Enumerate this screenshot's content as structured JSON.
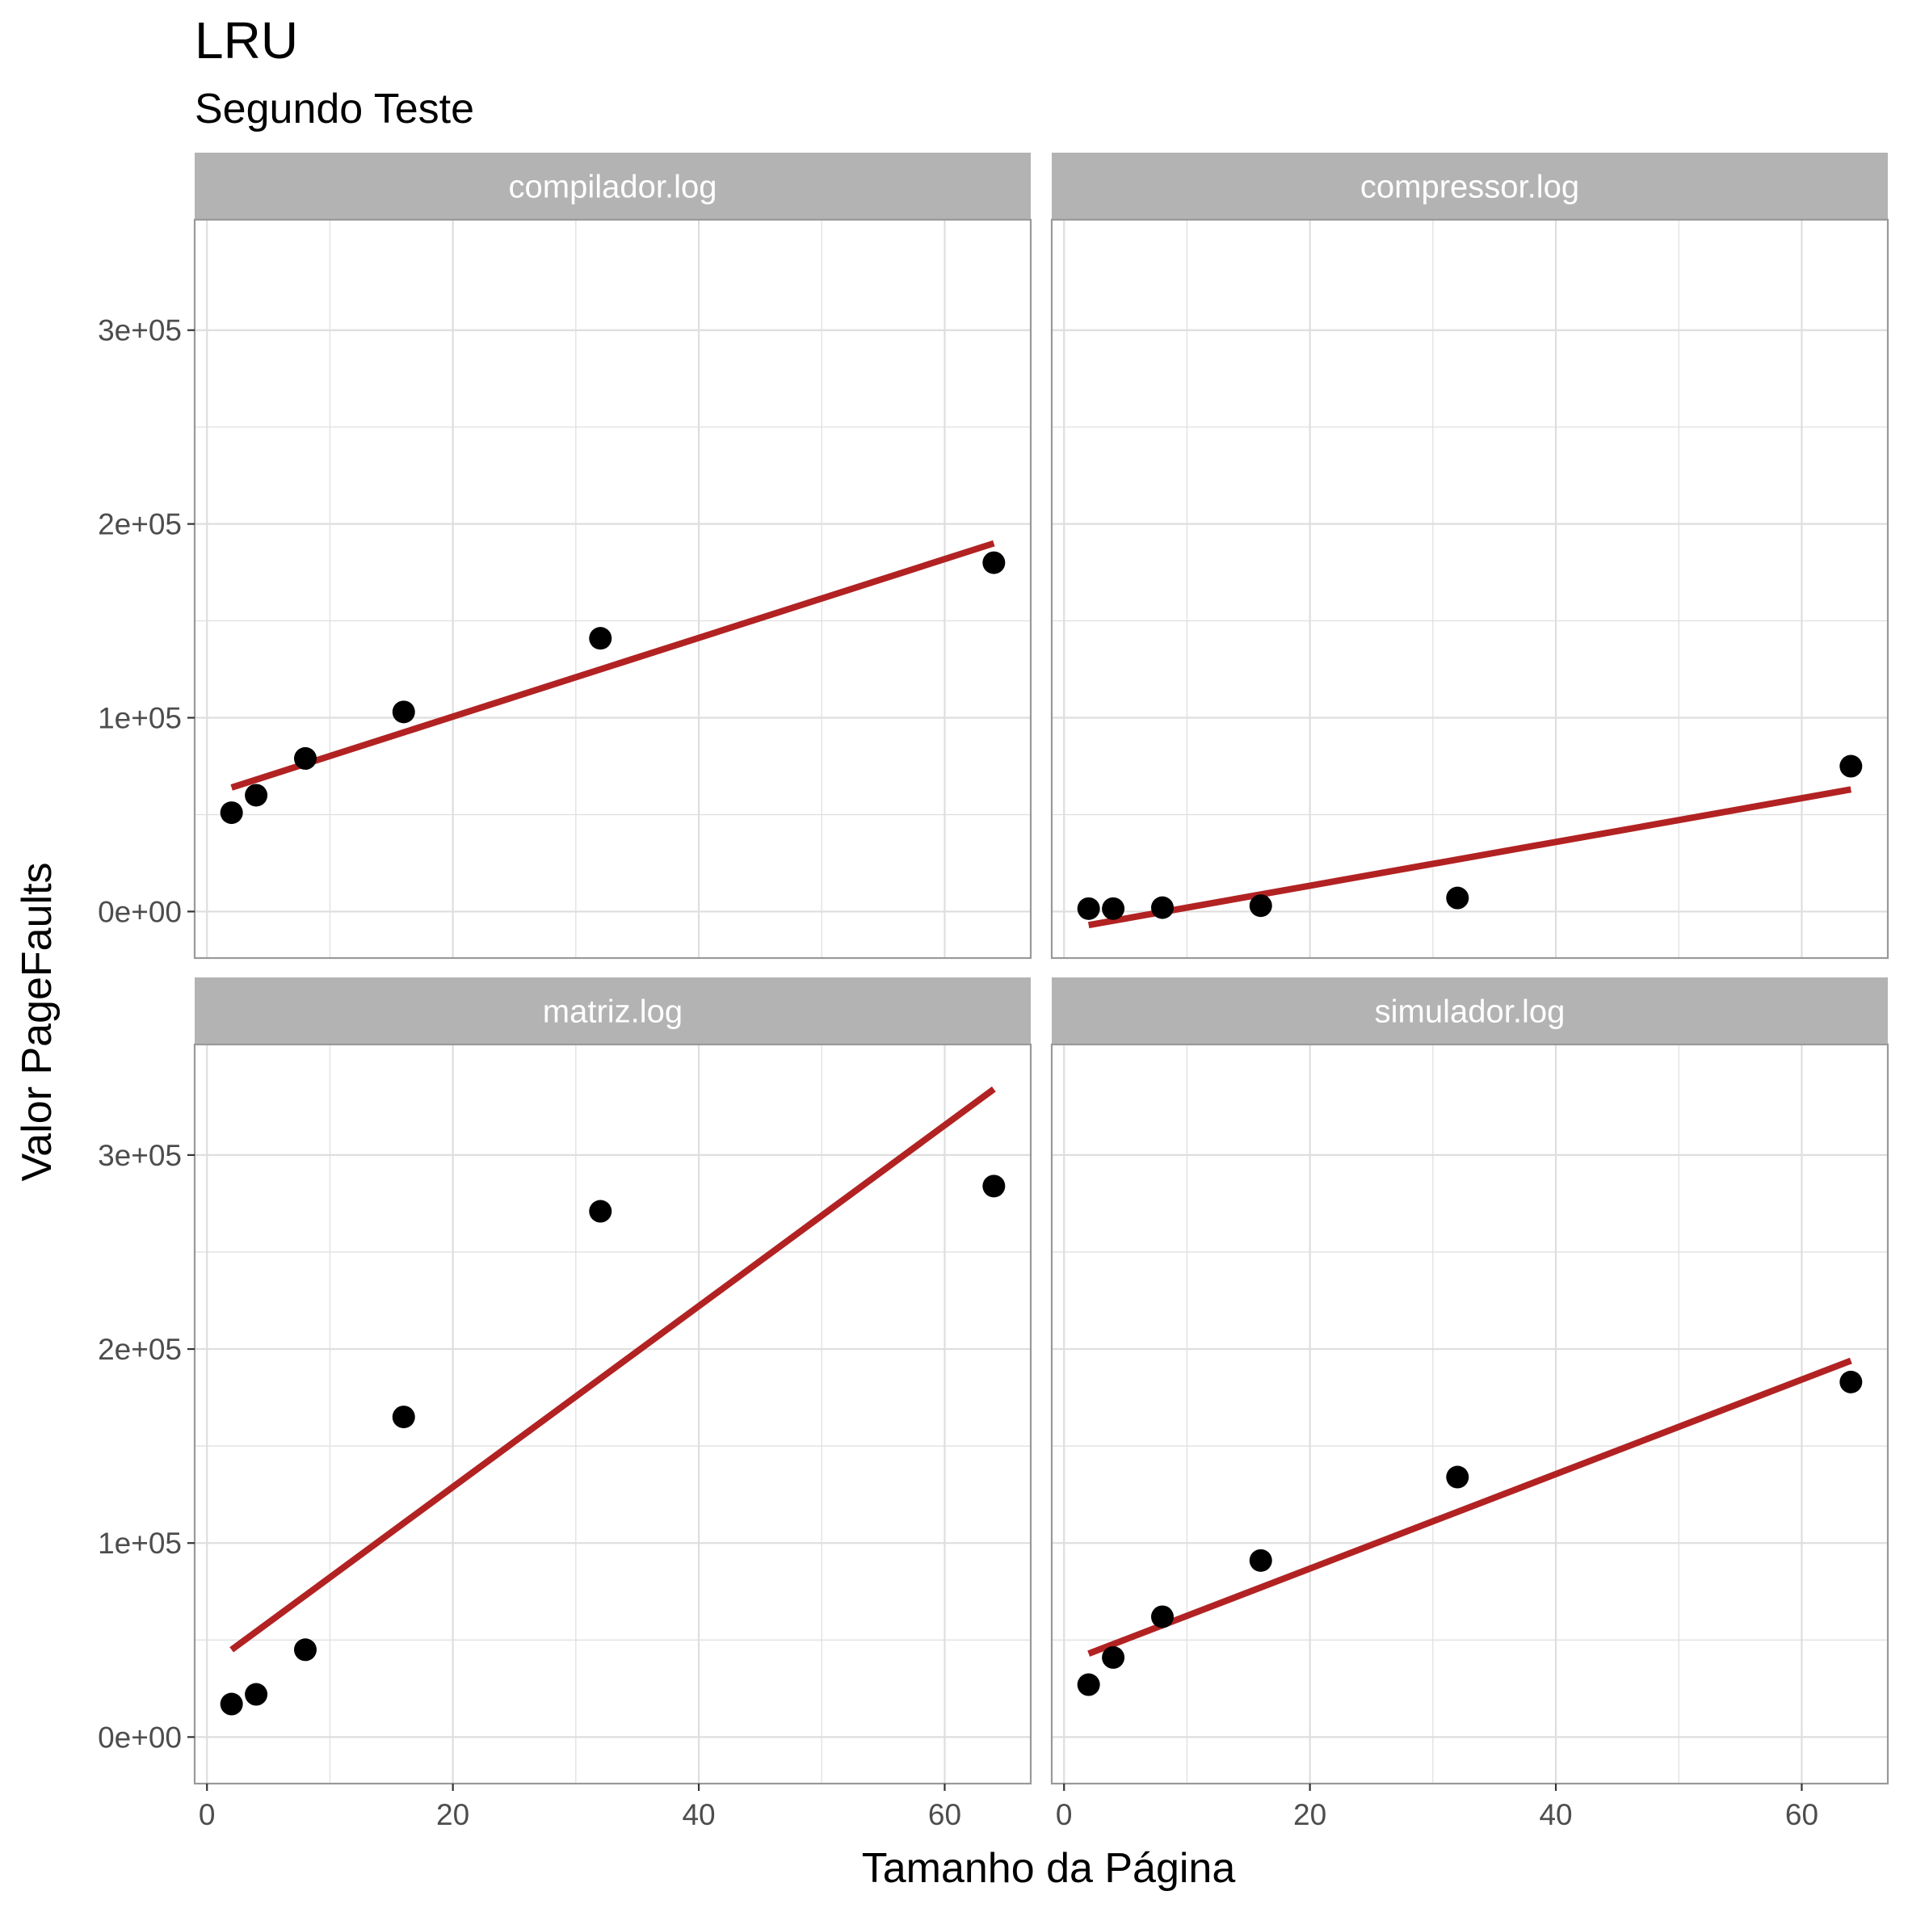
{
  "chart_data": {
    "type": "scatter",
    "title": "LRU",
    "subtitle": "Segundo Teste",
    "xlabel": "Tamanho da Página",
    "ylabel": "Valor PageFaults",
    "xlim": [
      -1,
      67
    ],
    "ylim": [
      -24000,
      357000
    ],
    "x_ticks": [
      0,
      20,
      40,
      60
    ],
    "x_tick_labels": [
      "0",
      "20",
      "40",
      "60"
    ],
    "y_ticks": [
      0,
      100000,
      200000,
      300000
    ],
    "y_tick_labels": [
      "0e+00",
      "1e+05",
      "2e+05",
      "3e+05"
    ],
    "grid": true,
    "point_color": "#000000",
    "line_color": "#b22222",
    "panel_border_color": "#999999",
    "grid_color": "#dedede",
    "strip_color": "#b3b3b3",
    "panels": [
      {
        "facet": "compilador.log",
        "x": [
          2,
          4,
          8,
          16,
          32,
          64
        ],
        "y": [
          51000,
          60000,
          79000,
          103000,
          141000,
          180000
        ],
        "fit": {
          "x": [
            2,
            64
          ],
          "y": [
            64000,
            190000
          ]
        }
      },
      {
        "facet": "compressor.log",
        "x": [
          2,
          4,
          8,
          16,
          32,
          64
        ],
        "y": [
          1500,
          1500,
          2000,
          3000,
          7000,
          75000
        ],
        "fit": {
          "x": [
            2,
            64
          ],
          "y": [
            -7000,
            63000
          ]
        }
      },
      {
        "facet": "matriz.log",
        "x": [
          2,
          4,
          8,
          16,
          32,
          64
        ],
        "y": [
          17000,
          22000,
          45000,
          165000,
          271000,
          284000
        ],
        "fit": {
          "x": [
            2,
            64
          ],
          "y": [
            45000,
            334000
          ]
        }
      },
      {
        "facet": "simulador.log",
        "x": [
          2,
          4,
          8,
          16,
          32,
          64
        ],
        "y": [
          27000,
          41000,
          62000,
          91000,
          134000,
          183000
        ],
        "fit": {
          "x": [
            2,
            64
          ],
          "y": [
            43000,
            194000
          ]
        }
      }
    ]
  }
}
